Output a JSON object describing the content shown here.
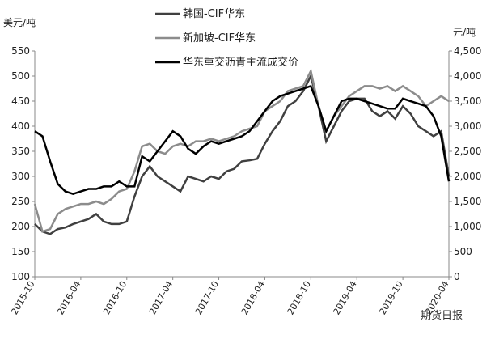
{
  "chart_data": {
    "type": "line",
    "y_label": "美元/吨",
    "y2_label": "元/吨",
    "watermark": "期货日报",
    "x": [
      "2015-10",
      "2015-11",
      "2015-12",
      "2016-01",
      "2016-02",
      "2016-03",
      "2016-04",
      "2016-05",
      "2016-06",
      "2016-07",
      "2016-08",
      "2016-09",
      "2016-10",
      "2016-11",
      "2016-12",
      "2017-01",
      "2017-02",
      "2017-03",
      "2017-04",
      "2017-05",
      "2017-06",
      "2017-07",
      "2017-08",
      "2017-09",
      "2017-10",
      "2017-11",
      "2017-12",
      "2018-01",
      "2018-02",
      "2018-03",
      "2018-04",
      "2018-05",
      "2018-06",
      "2018-07",
      "2018-08",
      "2018-09",
      "2018-10",
      "2018-11",
      "2018-12",
      "2019-01",
      "2019-02",
      "2019-03",
      "2019-04",
      "2019-05",
      "2019-06",
      "2019-07",
      "2019-08",
      "2019-09",
      "2019-10",
      "2019-11",
      "2019-12",
      "2020-01",
      "2020-02",
      "2020-03",
      "2020-04"
    ],
    "xticks": [
      "2015-10",
      "2016-04",
      "2016-10",
      "2017-04",
      "2017-10",
      "2018-04",
      "2018-10",
      "2019-04",
      "2019-10",
      "2020-04"
    ],
    "ylim": [
      100,
      550
    ],
    "yticks": [
      100,
      150,
      200,
      250,
      300,
      350,
      400,
      450,
      500,
      550
    ],
    "y2lim": [
      0,
      4500
    ],
    "y2ticks": [
      0,
      500,
      {
        "value": 1000,
        "label": "1,000"
      },
      {
        "value": 1500,
        "label": "1,500"
      },
      {
        "value": 2000,
        "label": "2,000"
      },
      {
        "value": 2500,
        "label": "2,500"
      },
      {
        "value": 3000,
        "label": "3,000"
      },
      {
        "value": 3500,
        "label": "3,500"
      },
      {
        "value": 4000,
        "label": "4,000"
      },
      {
        "value": 4500,
        "label": "4,500"
      }
    ],
    "series": [
      {
        "name": "韩国-CIF华东",
        "color": "#404040",
        "values": [
          205,
          190,
          185,
          195,
          198,
          205,
          210,
          215,
          225,
          210,
          205,
          205,
          210,
          260,
          300,
          320,
          300,
          290,
          280,
          270,
          300,
          295,
          290,
          300,
          295,
          310,
          315,
          330,
          332,
          335,
          365,
          390,
          410,
          440,
          450,
          470,
          500,
          440,
          370,
          400,
          430,
          450,
          455,
          455,
          430,
          420,
          430,
          415,
          440,
          425,
          400,
          390,
          380,
          390,
          300
        ]
      },
      {
        "name": "新加坡-CIF华东",
        "color": "#8c8c8c",
        "values": [
          245,
          190,
          195,
          225,
          235,
          240,
          245,
          245,
          250,
          245,
          255,
          270,
          275,
          310,
          360,
          365,
          350,
          345,
          360,
          365,
          360,
          370,
          370,
          375,
          370,
          375,
          380,
          390,
          395,
          400,
          430,
          440,
          450,
          470,
          475,
          480,
          510,
          440,
          390,
          420,
          440,
          460,
          470,
          480,
          480,
          475,
          480,
          470,
          480,
          470,
          460,
          440,
          450,
          460,
          450
        ]
      },
      {
        "name": "华东重交沥青主流成交价",
        "color": "#000000",
        "axis": "y2",
        "values": [
          2900,
          2800,
          2300,
          1850,
          1700,
          1650,
          1700,
          1750,
          1750,
          1800,
          1800,
          1900,
          1800,
          1800,
          2400,
          2300,
          2500,
          2700,
          2900,
          2800,
          2550,
          2450,
          2600,
          2700,
          2650,
          2700,
          2750,
          2800,
          2900,
          3100,
          3300,
          3500,
          3600,
          3650,
          3700,
          3750,
          3800,
          3400,
          2900,
          3200,
          3500,
          3550,
          3550,
          3500,
          3450,
          3400,
          3350,
          3350,
          3550,
          3500,
          3450,
          3400,
          3200,
          2800,
          1900
        ]
      }
    ]
  }
}
